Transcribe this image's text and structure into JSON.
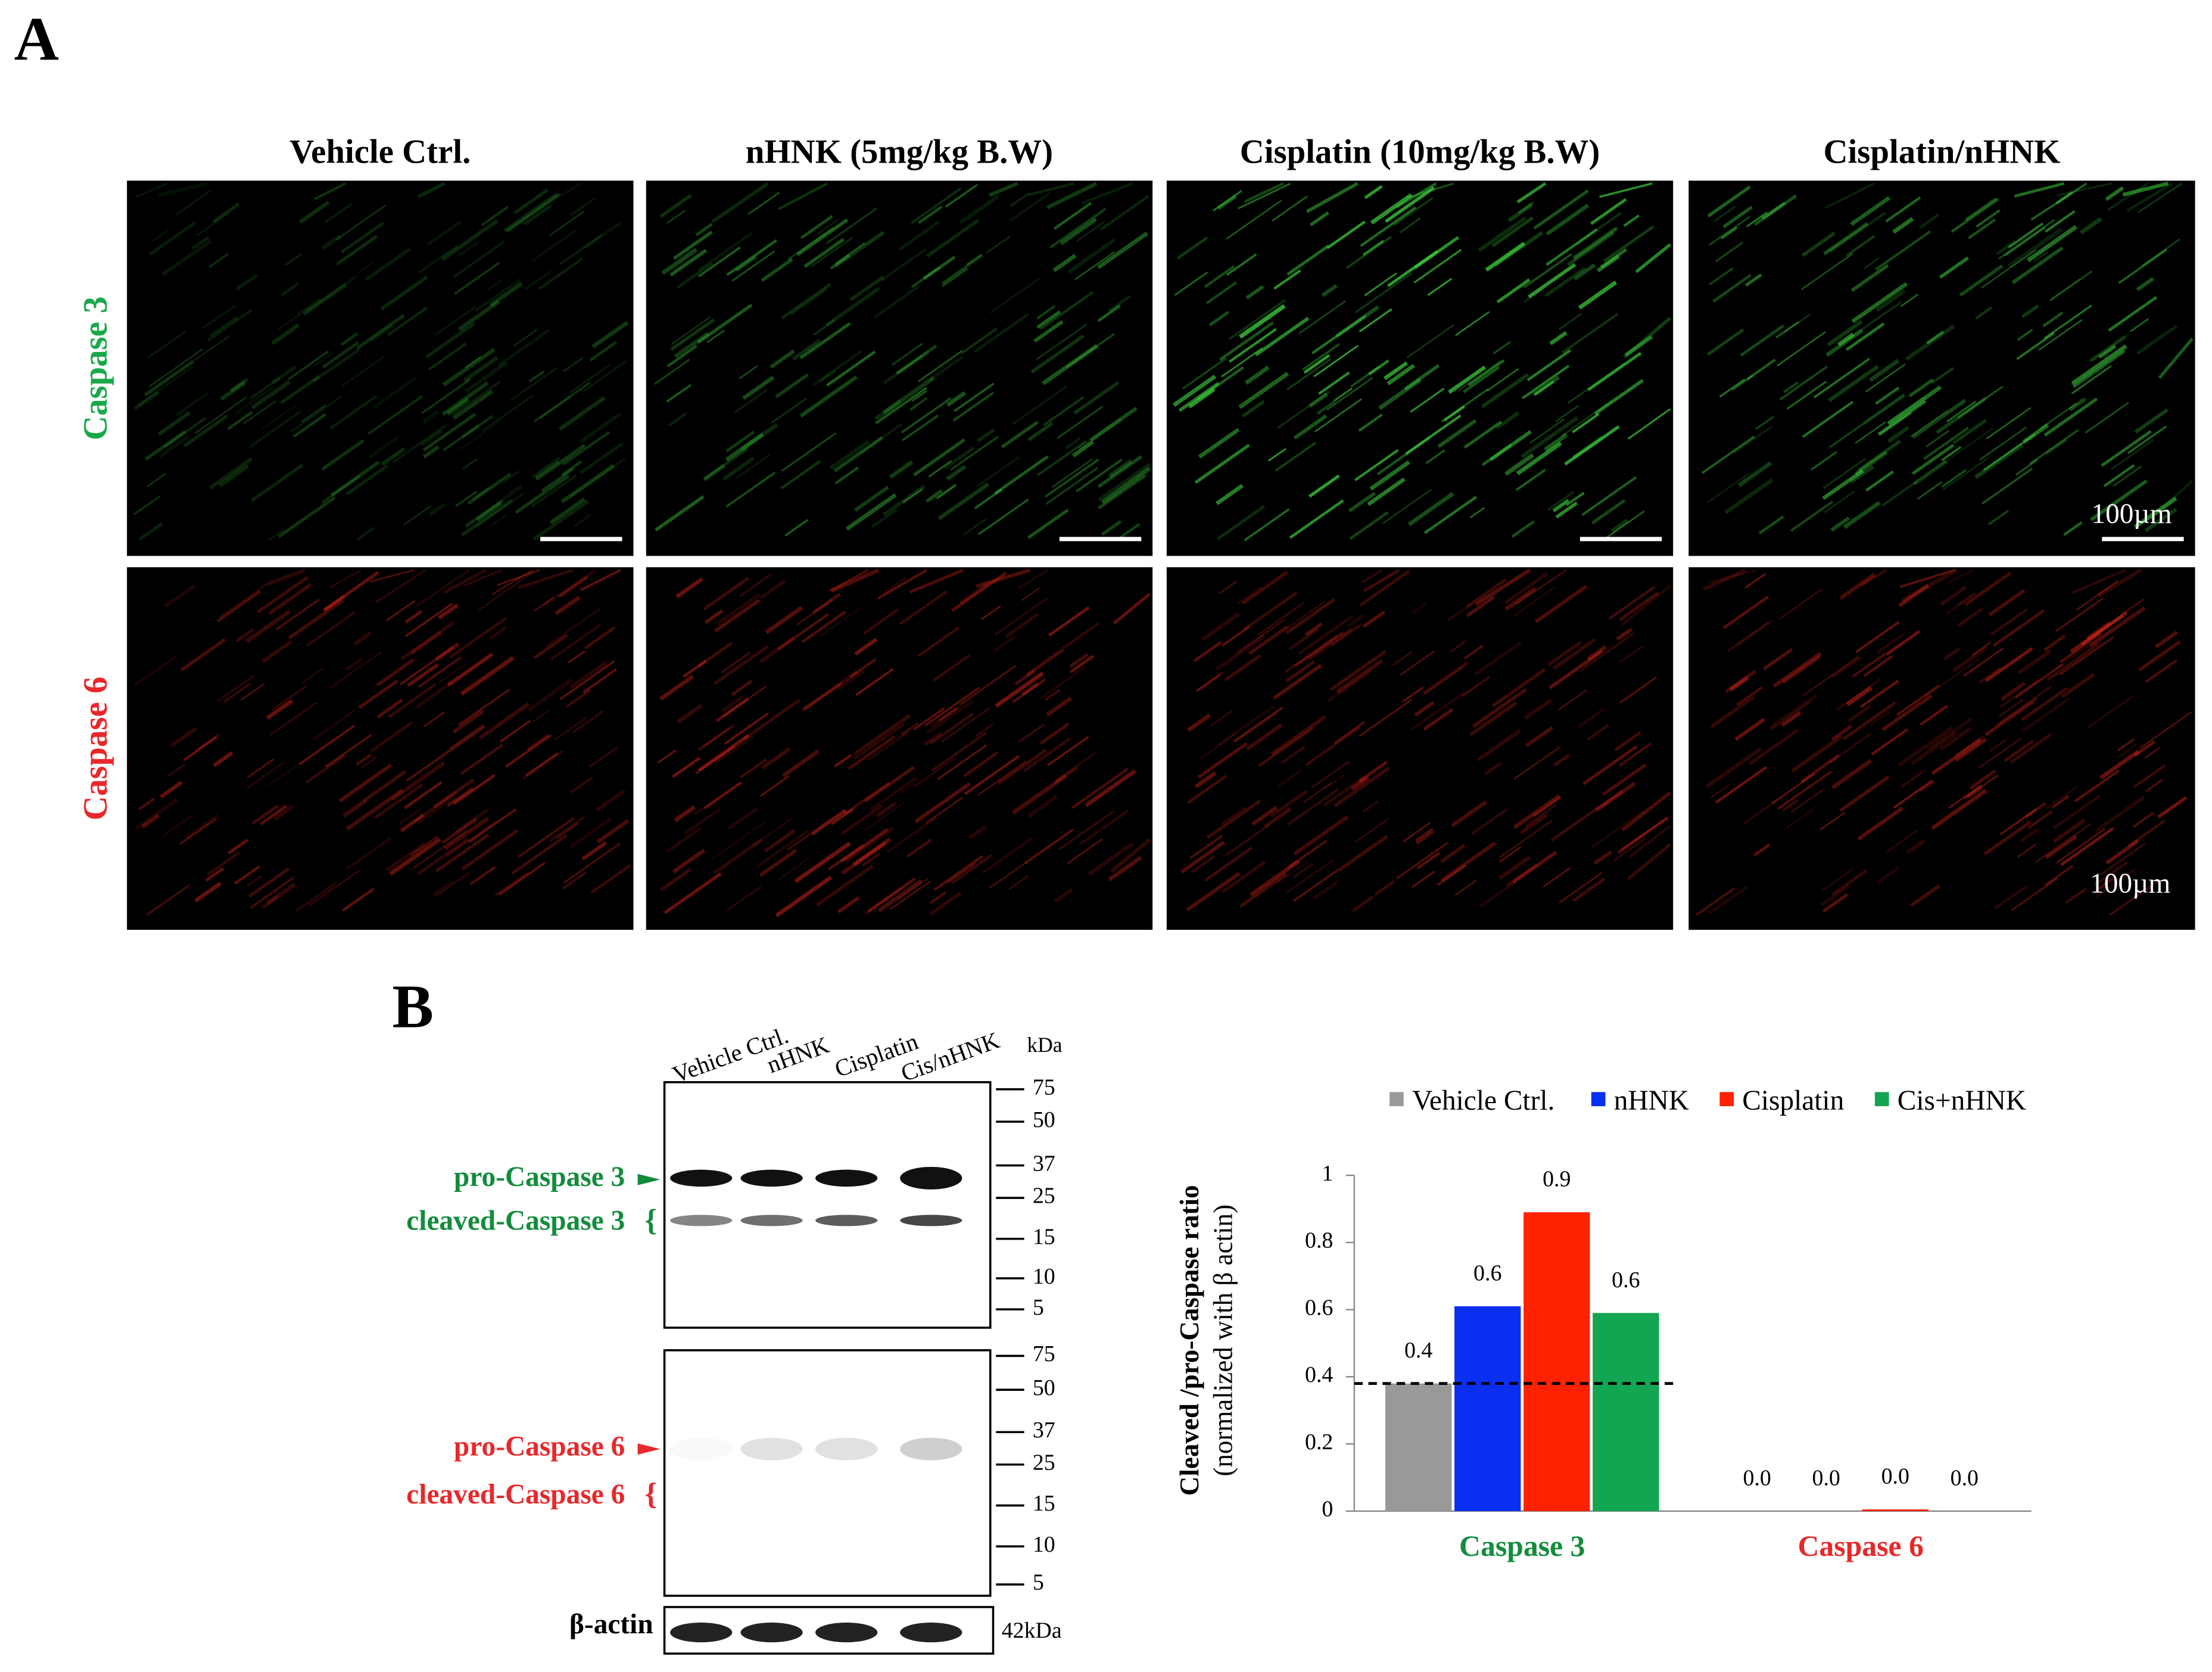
{
  "panel_a": {
    "label": "A",
    "columns": [
      "Vehicle Ctrl.",
      "nHNK (5mg/kg B.W)",
      "Cisplatin (10mg/kg B.W)",
      "Cisplatin/nHNK"
    ],
    "rows": [
      "Caspase 3",
      "Caspase 6"
    ],
    "scale_bar": "100µm"
  },
  "panel_b": {
    "label": "B",
    "blot": {
      "lanes": [
        "Vehicle Ctrl.",
        "nHNK",
        "Cisplatin",
        "Cis/nHNK"
      ],
      "unit": "kDa",
      "markers": [
        "75",
        "50",
        "37",
        "25",
        "15",
        "10",
        "5"
      ],
      "bands_top": [
        "pro-Caspase 3",
        "cleaved-Caspase 3"
      ],
      "bands_bottom": [
        "pro-Caspase 6",
        "cleaved-Caspase 6"
      ],
      "loading": "β-actin",
      "loading_size": "42kDa"
    }
  },
  "chart_data": {
    "type": "bar",
    "y_label": [
      "Cleaved /pro-Caspase ratio",
      "(normalized with β actin)"
    ],
    "categories": [
      "Caspase 3",
      "Caspase 6"
    ],
    "category_colors": [
      "#138c3c",
      "#e8282a"
    ],
    "series": [
      {
        "name": "Vehicle Ctrl.",
        "color": "#999999",
        "values": [
          0.38,
          0.0
        ],
        "value_labels": [
          "0.4",
          "0.0"
        ]
      },
      {
        "name": "nHNK",
        "color": "#0a2ff0",
        "values": [
          0.61,
          0.0
        ],
        "value_labels": [
          "0.6",
          "0.0"
        ]
      },
      {
        "name": "Cisplatin",
        "color": "#ff2200",
        "values": [
          0.89,
          0.005
        ],
        "value_labels": [
          "0.9",
          "0.0"
        ]
      },
      {
        "name": "Cis+nHNK",
        "color": "#12a552",
        "values": [
          0.59,
          0.0
        ],
        "value_labels": [
          "0.6",
          "0.0"
        ]
      }
    ],
    "reference_line": 0.38,
    "ylim": [
      0,
      1
    ],
    "yticks": [
      0,
      0.2,
      0.4,
      0.6,
      0.8,
      1
    ],
    "grid": false,
    "legend": "top"
  }
}
